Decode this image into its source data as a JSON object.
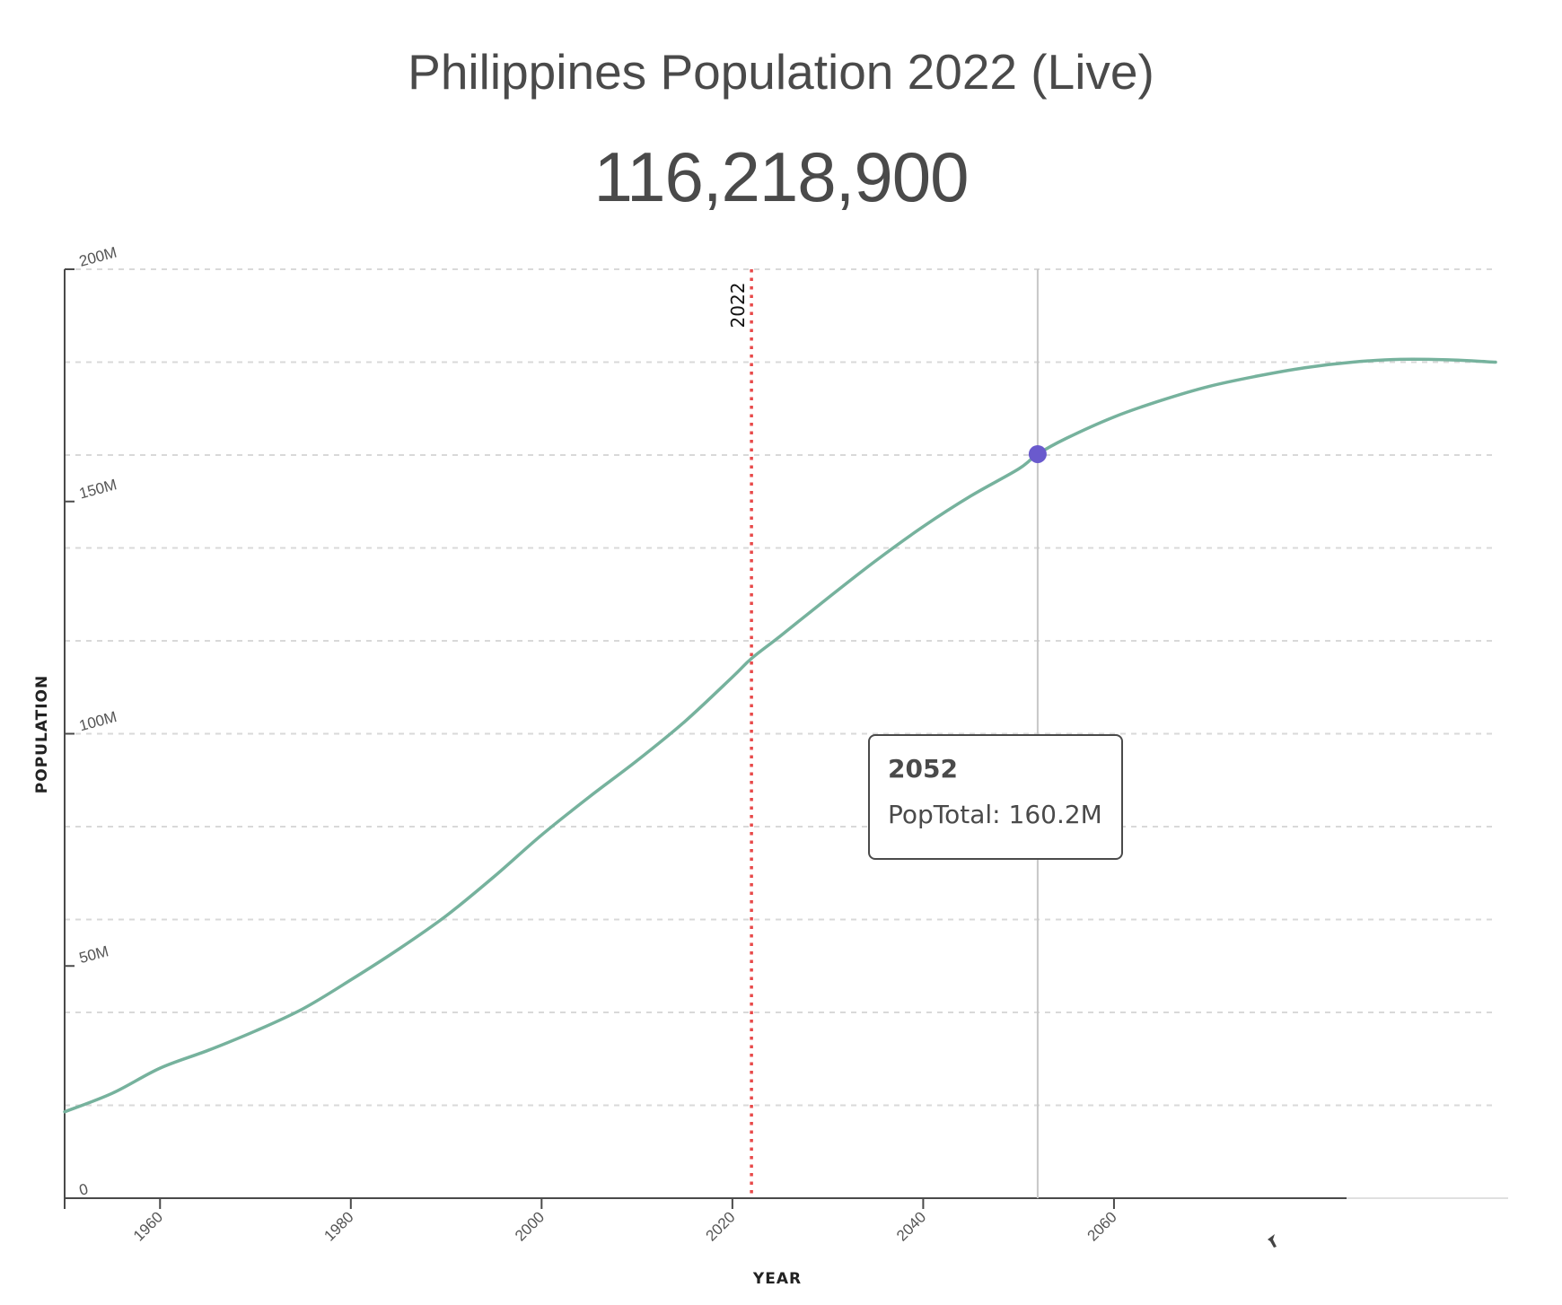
{
  "header": {
    "title": "Philippines Population 2022 (Live)",
    "live_counter": "116,218,900"
  },
  "axes": {
    "y_title": "POPULATION",
    "x_title": "YEAR",
    "y_ticks": [
      "0",
      "50M",
      "100M",
      "150M",
      "200M"
    ],
    "x_ticks": [
      "1960",
      "1980",
      "2000",
      "2020",
      "2040",
      "2060"
    ]
  },
  "marker": {
    "current_year_label": "2022",
    "current_year_color": "#e84a4a"
  },
  "tooltip": {
    "year": "2052",
    "value_label": "PopTotal: 160.2M"
  },
  "colors": {
    "line": "#76b29d",
    "hover_dot": "#6a5acd",
    "hover_line": "#c8c8c8",
    "grid": "#d9d9d9",
    "axis": "#4a4a4a"
  },
  "chart_data": {
    "type": "line",
    "title": "Philippines Population 2022 (Live)",
    "subtitle": "116,218,900",
    "xlabel": "YEAR",
    "ylabel": "POPULATION",
    "xlim": [
      1950,
      2100
    ],
    "ylim": [
      0,
      200
    ],
    "y_unit": "millions",
    "grid": true,
    "grid_interval_y": 20,
    "legend": null,
    "annotations": [
      {
        "type": "vline",
        "x": 2022,
        "label": "2022",
        "style": "dotted",
        "color": "#e84a4a"
      },
      {
        "type": "hover",
        "x": 2052,
        "y": 160.2,
        "label": "PopTotal: 160.2M"
      }
    ],
    "series": [
      {
        "name": "PopTotal",
        "x": [
          1950,
          1955,
          1960,
          1965,
          1970,
          1975,
          1980,
          1985,
          1990,
          1995,
          2000,
          2005,
          2010,
          2015,
          2020,
          2022,
          2025,
          2030,
          2035,
          2040,
          2045,
          2050,
          2052,
          2055,
          2060,
          2065,
          2070,
          2075,
          2080,
          2085,
          2090,
          2095,
          2100
        ],
        "values": [
          18.6,
          22.6,
          28.0,
          31.8,
          36.0,
          40.8,
          47.0,
          53.6,
          60.8,
          69.2,
          78.2,
          86.4,
          94.2,
          102.6,
          112.2,
          116.2,
          121.0,
          129.2,
          137.2,
          144.6,
          151.2,
          157.0,
          160.2,
          163.6,
          168.2,
          171.8,
          174.8,
          177.0,
          178.8,
          180.0,
          180.6,
          180.5,
          180.0
        ]
      }
    ]
  }
}
